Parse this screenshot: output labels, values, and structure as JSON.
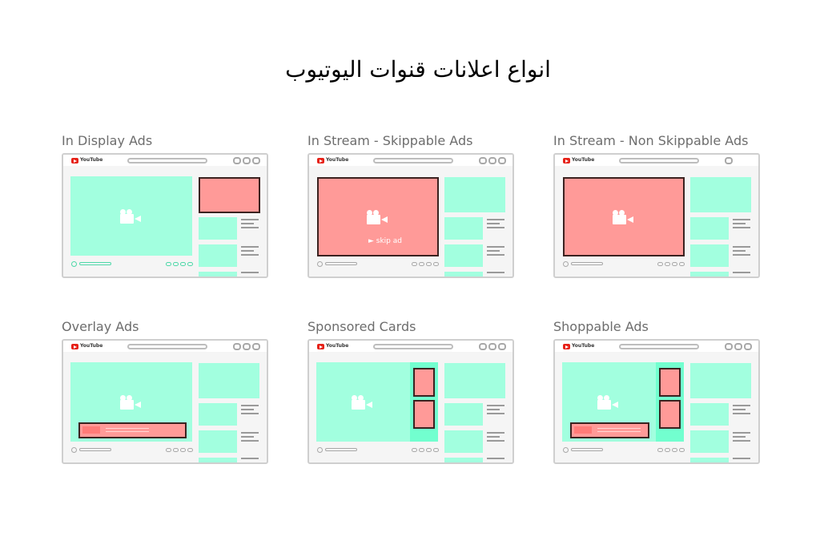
{
  "page": {
    "title": "انواع اعلانات قنوات اليوتيوب"
  },
  "brand": {
    "logo_text": "YouTube"
  },
  "colors": {
    "content": "#a2ffdf",
    "ad": "#ff9a98",
    "ad_border": "#3b2220",
    "chrome": "#cfcfcf",
    "label": "#6d6d6d"
  },
  "icons": {
    "player": "video-camera-icon",
    "logo": "youtube-logo-icon"
  },
  "panels": [
    {
      "title": "In Display Ads"
    },
    {
      "title": "In Stream - Skippable Ads",
      "skip_label": "► skip ad"
    },
    {
      "title": "In Stream - Non Skippable Ads"
    },
    {
      "title": "Overlay Ads"
    },
    {
      "title": "Sponsored Cards"
    },
    {
      "title": "Shoppable Ads"
    }
  ]
}
